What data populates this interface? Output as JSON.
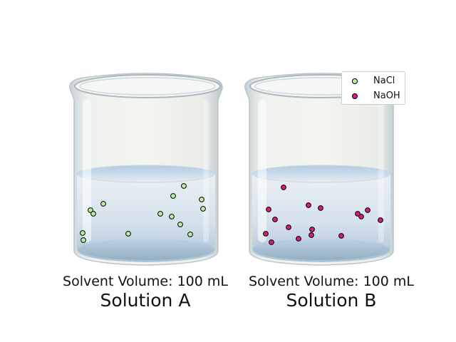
{
  "species": [
    {
      "key": "nacl",
      "name": "NaCl",
      "color": "#b9f0a0"
    },
    {
      "key": "naoh",
      "name": "NaOH",
      "color": "#d81b7f"
    }
  ],
  "beakers": [
    {
      "key": "a",
      "title": "Solution A",
      "volume_label": "Solvent Volume: 100 mL",
      "species": "nacl",
      "particle_count": 15
    },
    {
      "key": "b",
      "title": "Solution B",
      "volume_label": "Solvent Volume: 100 mL",
      "species": "naoh",
      "particle_count": 17
    }
  ]
}
